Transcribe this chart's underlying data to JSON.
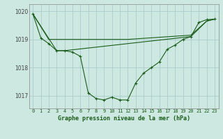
{
  "title": "Graphe pression niveau de la mer (hPa)",
  "background_color": "#cce8e0",
  "grid_color": "#aacccc",
  "line_color": "#1a5c1a",
  "xlim": [
    -0.5,
    23.5
  ],
  "ylim": [
    1016.55,
    1020.25
  ],
  "yticks": [
    1017,
    1018,
    1019,
    1020
  ],
  "xticks": [
    0,
    1,
    2,
    3,
    4,
    5,
    6,
    7,
    8,
    9,
    10,
    11,
    12,
    13,
    14,
    15,
    16,
    17,
    18,
    19,
    20,
    21,
    22,
    23
  ],
  "series1_x": [
    0,
    1,
    2,
    3,
    4,
    5,
    6,
    7,
    8,
    9,
    10,
    11,
    12,
    13,
    14,
    15,
    16,
    17,
    18,
    19,
    20,
    21,
    22,
    23
  ],
  "series1_y": [
    1019.9,
    1019.05,
    1018.85,
    1018.6,
    1018.6,
    1018.55,
    1018.4,
    1017.1,
    1016.9,
    1016.85,
    1016.95,
    1016.85,
    1016.85,
    1017.45,
    1017.8,
    1018.0,
    1018.2,
    1018.65,
    1018.8,
    1019.0,
    1019.1,
    1019.6,
    1019.7,
    1019.72
  ],
  "series2_x": [
    0,
    2,
    3,
    12,
    20,
    22,
    23
  ],
  "series2_y": [
    1019.9,
    1019.0,
    1019.0,
    1019.0,
    1019.15,
    1019.65,
    1019.72
  ],
  "series3_x": [
    0,
    3,
    4,
    20,
    22,
    23
  ],
  "series3_y": [
    1019.9,
    1018.6,
    1018.6,
    1019.1,
    1019.65,
    1019.72
  ]
}
